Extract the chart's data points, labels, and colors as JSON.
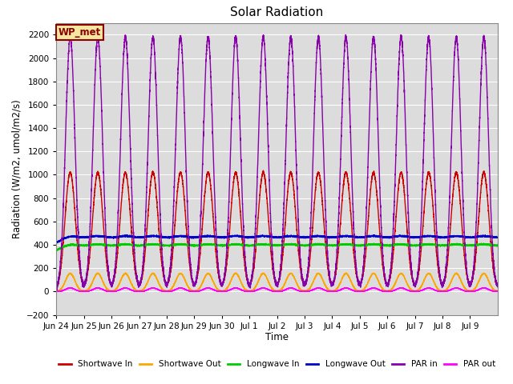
{
  "title": "Solar Radiation",
  "ylabel": "Radiation (W/m2, umol/m2/s)",
  "xlabel": "Time",
  "ylim": [
    -200,
    2300
  ],
  "yticks": [
    -200,
    0,
    200,
    400,
    600,
    800,
    1000,
    1200,
    1400,
    1600,
    1800,
    2000,
    2200
  ],
  "bg_color": "#dcdcdc",
  "watermark_text": "WP_met",
  "watermark_bg": "#f5e6a0",
  "watermark_border": "#8B0000",
  "n_days": 16,
  "xtick_labels": [
    "Jun 24",
    "Jun 25",
    "Jun 26",
    "Jun 27",
    "Jun 28",
    "Jun 29",
    "Jun 30",
    "Jul 1",
    "Jul 2",
    "Jul 3",
    "Jul 4",
    "Jul 5",
    "Jul 6",
    "Jul 7",
    "Jul 8",
    "Jul 9"
  ],
  "legend_entries": [
    {
      "label": "Shortwave In",
      "color": "#cc0000"
    },
    {
      "label": "Shortwave Out",
      "color": "#ffa500"
    },
    {
      "label": "Longwave In",
      "color": "#00cc00"
    },
    {
      "label": "Longwave Out",
      "color": "#0000cc"
    },
    {
      "label": "PAR in",
      "color": "#8800aa"
    },
    {
      "label": "PAR out",
      "color": "#ff00ff"
    }
  ],
  "shortwave_in_peak": 1020,
  "shortwave_out_peak": 155,
  "longwave_in_base": 315,
  "longwave_in_amp": 80,
  "longwave_out_base": 375,
  "longwave_out_amp": 90,
  "par_in_peak": 2180,
  "par_out_peak": 30,
  "grid_color": "#ffffff",
  "line_width": 1.0
}
